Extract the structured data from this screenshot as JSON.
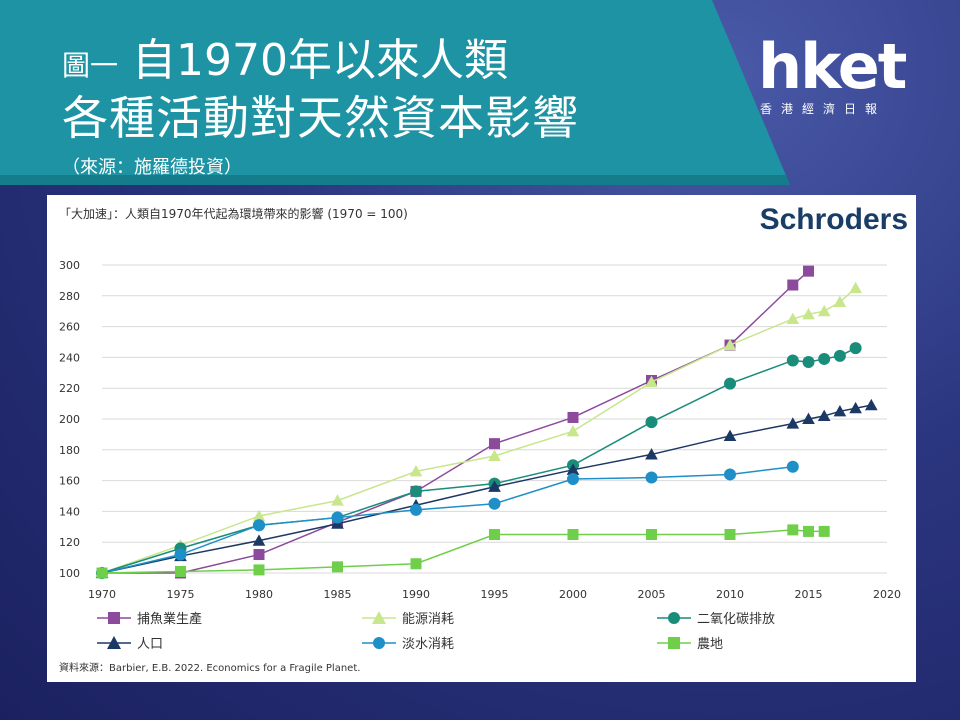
{
  "header": {
    "title_prefix": "圖一",
    "title_line1": "自1970年以來人類",
    "title_line2": "各種活動對天然資本影響",
    "source": "（來源：施羅德投資）"
  },
  "logo": {
    "main": "hket",
    "sub": "香港經濟日報"
  },
  "colors": {
    "banner": "#1e93a3",
    "banner_dark": "#157c8c"
  },
  "chart_data": {
    "type": "line",
    "title": "「大加速」：人類自1970年代起為環境帶來的影響 (1970 = 100)",
    "brand": "Schroders",
    "source_note": "資料來源：Barbier, E.B. 2022. Economics for a Fragile Planet.",
    "xlim": [
      1970,
      2020
    ],
    "ylim": [
      100,
      300
    ],
    "x_ticks": [
      "1970",
      "1975",
      "1980",
      "1985",
      "1990",
      "1995",
      "2000",
      "2005",
      "2010",
      "2015",
      "2020"
    ],
    "y_ticks": [
      "100",
      "120",
      "140",
      "160",
      "180",
      "200",
      "220",
      "240",
      "260",
      "280",
      "300"
    ],
    "grid": "horizontal",
    "legend_position": "bottom",
    "series": [
      {
        "name": "捕魚業生產",
        "color": "#8b4a9b",
        "marker": "square",
        "x": [
          1970,
          1975,
          1980,
          1985,
          1990,
          1995,
          2000,
          2005,
          2010,
          2014,
          2015
        ],
        "y": [
          100,
          100,
          112,
          133,
          153,
          184,
          201,
          225,
          248,
          287,
          296
        ]
      },
      {
        "name": "能源消耗",
        "color": "#c8e68c",
        "marker": "triangle",
        "x": [
          1970,
          1975,
          1980,
          1985,
          1990,
          1995,
          2000,
          2005,
          2010,
          2014,
          2015,
          2016,
          2017,
          2018
        ],
        "y": [
          100,
          118,
          137,
          147,
          166,
          176,
          192,
          224,
          248,
          265,
          268,
          270,
          276,
          285
        ]
      },
      {
        "name": "二氧化碳排放",
        "color": "#1a8c7a",
        "marker": "circle",
        "x": [
          1970,
          1975,
          1980,
          1985,
          1990,
          1995,
          2000,
          2005,
          2010,
          2014,
          2015,
          2016,
          2017,
          2018
        ],
        "y": [
          100,
          116,
          131,
          136,
          153,
          158,
          170,
          198,
          223,
          238,
          237,
          239,
          241,
          246
        ]
      },
      {
        "name": "人口",
        "color": "#1c3864",
        "marker": "triangle",
        "x": [
          1970,
          1975,
          1980,
          1985,
          1990,
          1995,
          2000,
          2005,
          2010,
          2014,
          2015,
          2016,
          2017,
          2018,
          2019
        ],
        "y": [
          100,
          111,
          121,
          132,
          144,
          156,
          167,
          177,
          189,
          197,
          200,
          202,
          205,
          207,
          209
        ]
      },
      {
        "name": "淡水消耗",
        "color": "#1f8fc7",
        "marker": "circle",
        "x": [
          1970,
          1975,
          1980,
          1985,
          1990,
          1995,
          2000,
          2005,
          2010,
          2014
        ],
        "y": [
          100,
          112,
          131,
          136,
          141,
          145,
          161,
          162,
          164,
          169
        ]
      },
      {
        "name": "農地",
        "color": "#6fcf4a",
        "marker": "square",
        "x": [
          1970,
          1975,
          1980,
          1985,
          1990,
          1995,
          2000,
          2005,
          2010,
          2014,
          2015,
          2016
        ],
        "y": [
          100,
          101,
          102,
          104,
          106,
          125,
          125,
          125,
          125,
          128,
          127,
          127
        ]
      }
    ]
  }
}
